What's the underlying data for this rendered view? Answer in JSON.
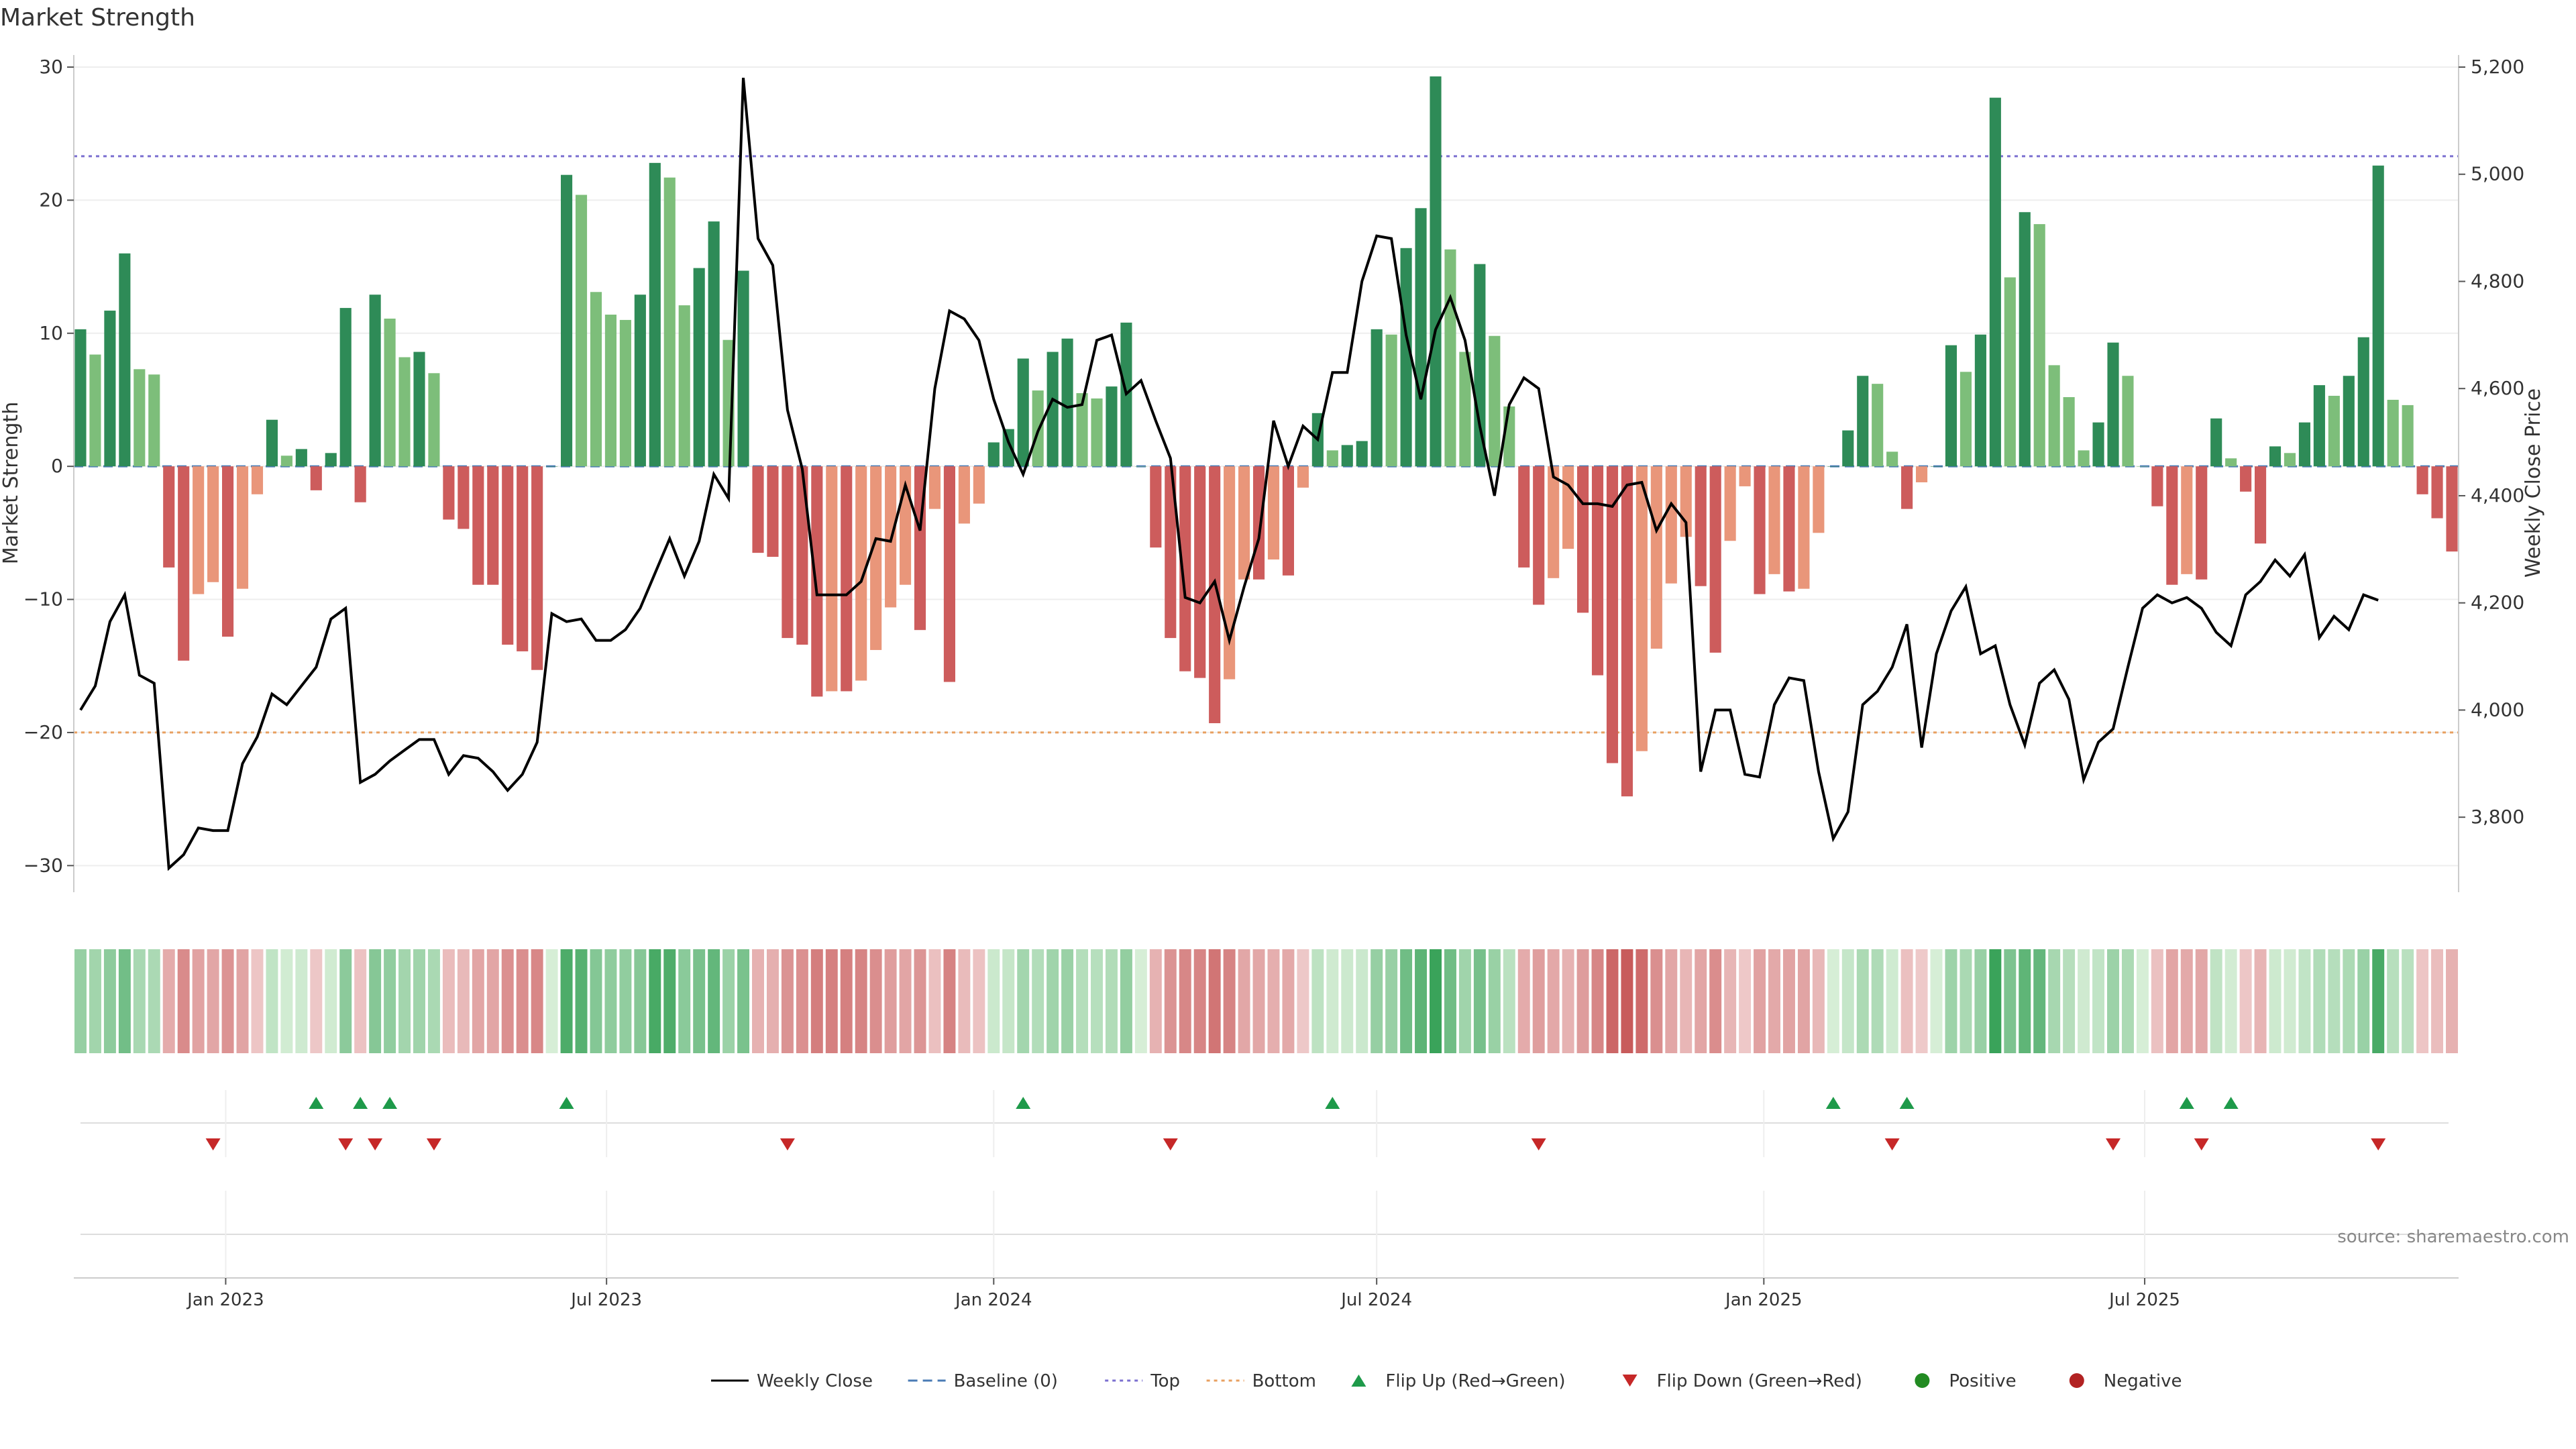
{
  "chart_data": {
    "type": "bar",
    "title": "Market Strength",
    "ylabel_left": "Market Strength",
    "ylabel_right": "Weekly Close Price",
    "source": "source: sharemaestro.com",
    "ylim_left": [
      -32,
      30
    ],
    "yticks_left": [
      "30",
      "20",
      "10",
      "0",
      "−10",
      "−20",
      "−30"
    ],
    "ylim_right": [
      3660,
      5200
    ],
    "yticks_right": [
      "5,200",
      "5,000",
      "4,800",
      "4,600",
      "4,400",
      "4,200",
      "4,000",
      "3,800"
    ],
    "x_start": "2022-10-24",
    "x_interval_days": 7,
    "xticks": [
      {
        "label": "Jan 2023",
        "date": "2023-01-01"
      },
      {
        "label": "Jul 2023",
        "date": "2023-07-01"
      },
      {
        "label": "Jan 2024",
        "date": "2024-01-01"
      },
      {
        "label": "Jul 2024",
        "date": "2024-07-01"
      },
      {
        "label": "Jan 2025",
        "date": "2025-01-01"
      },
      {
        "label": "Jul 2025",
        "date": "2025-07-01"
      }
    ],
    "reference_lines": {
      "baseline": 0,
      "top": 23.3,
      "bottom": -20
    },
    "strength": [
      10.3,
      8.4,
      11.7,
      16.0,
      7.3,
      6.9,
      -7.6,
      -14.6,
      -9.6,
      -8.7,
      -12.8,
      -9.2,
      -2.1,
      3.5,
      0.8,
      1.3,
      -1.8,
      1.0,
      11.9,
      -2.7,
      12.9,
      11.1,
      8.2,
      8.6,
      7.0,
      -4.0,
      -4.7,
      -8.9,
      -8.9,
      -13.4,
      -13.9,
      -15.3,
      0.0,
      21.9,
      20.4,
      13.1,
      11.4,
      11.0,
      12.9,
      22.8,
      21.7,
      12.1,
      14.9,
      18.4,
      9.5,
      14.7,
      -6.5,
      -6.8,
      -12.9,
      -13.4,
      -17.3,
      -16.9,
      -16.9,
      -16.1,
      -13.8,
      -10.6,
      -8.9,
      -12.3,
      -3.2,
      -16.2,
      -4.3,
      -2.8,
      1.8,
      2.8,
      8.1,
      5.7,
      8.6,
      9.6,
      5.5,
      5.1,
      6.0,
      10.8,
      0.0,
      -6.1,
      -12.9,
      -15.4,
      -15.9,
      -19.3,
      -16.0,
      -8.5,
      -8.5,
      -7.0,
      -8.2,
      -1.6,
      4.0,
      1.2,
      1.6,
      1.9,
      10.3,
      9.9,
      16.4,
      19.4,
      29.3,
      16.3,
      8.6,
      15.2,
      9.8,
      4.5,
      -7.6,
      -10.4,
      -8.4,
      -6.2,
      -11.0,
      -15.7,
      -22.3,
      -24.8,
      -21.4,
      -13.7,
      -8.8,
      -5.3,
      -9.0,
      -14.0,
      -5.6,
      -1.5,
      -9.6,
      -8.1,
      -9.4,
      -9.2,
      -5.0,
      0.0,
      2.7,
      6.8,
      6.2,
      1.1,
      -3.2,
      -1.2,
      0.0,
      9.1,
      7.1,
      9.9,
      27.7,
      14.2,
      19.1,
      18.2,
      7.6,
      5.2,
      1.2,
      3.3,
      9.3,
      6.8,
      0.0,
      -3.0,
      -8.9,
      -8.1,
      -8.5,
      3.6,
      0.6,
      -1.9,
      -5.8,
      1.5,
      1.0,
      3.3,
      6.1,
      5.3,
      6.8,
      9.7,
      22.6,
      5.0,
      4.6,
      -2.1,
      -3.9,
      -6.4
    ],
    "weekly_close": [
      4000,
      4045,
      4165,
      4215,
      4065,
      4050,
      3705,
      3730,
      3780,
      3775,
      3775,
      3900,
      3950,
      4030,
      4010,
      4045,
      4080,
      4170,
      4190,
      3865,
      3880,
      3905,
      3925,
      3945,
      3945,
      3880,
      3915,
      3910,
      3885,
      3850,
      3880,
      3940,
      4180,
      4165,
      4170,
      4130,
      4130,
      4150,
      4190,
      4255,
      4320,
      4250,
      4315,
      4440,
      4395,
      5180,
      4880,
      4830,
      4560,
      4450,
      4215,
      4215,
      4215,
      4240,
      4320,
      4315,
      4420,
      4335,
      4600,
      4745,
      4730,
      4690,
      4580,
      4500,
      4440,
      4520,
      4580,
      4565,
      4570,
      4690,
      4700,
      4590,
      4615,
      4540,
      4470,
      4210,
      4200,
      4240,
      4130,
      4230,
      4320,
      4540,
      4455,
      4530,
      4505,
      4630,
      4630,
      4800,
      4885,
      4880,
      4700,
      4580,
      4710,
      4770,
      4690,
      4530,
      4400,
      4570,
      4620,
      4600,
      4435,
      4420,
      4385,
      4385,
      4380,
      4420,
      4425,
      4335,
      4385,
      4350,
      3885,
      4000,
      4000,
      3880,
      3875,
      4010,
      4060,
      4055,
      3885,
      3760,
      3810,
      4010,
      4035,
      4080,
      4160,
      3930,
      4105,
      4185,
      4230,
      4105,
      4120,
      4010,
      3935,
      4050,
      4075,
      4020,
      3870,
      3940,
      3965,
      4080,
      4190,
      4215,
      4200,
      4210,
      4190,
      4145,
      4120,
      4215,
      4240,
      4280,
      4250,
      4290,
      4135,
      4175,
      4150,
      4215,
      4205
    ],
    "flip_up": [
      "2023-02-13",
      "2023-03-06",
      "2023-03-20",
      "2023-06-12",
      "2024-01-15",
      "2024-06-10",
      "2025-02-03",
      "2025-03-10",
      "2025-07-21",
      "2025-08-11"
    ],
    "flip_down": [
      "2022-12-26",
      "2023-02-27",
      "2023-03-13",
      "2023-04-10",
      "2023-09-25",
      "2024-03-25",
      "2024-09-16",
      "2025-03-03",
      "2025-06-16",
      "2025-07-28",
      "2025-10-20"
    ],
    "legend_placement": "bottom-center",
    "grid": true
  },
  "legend": [
    {
      "key": "close",
      "label": "Weekly Close"
    },
    {
      "key": "baseline",
      "label": "Baseline (0)"
    },
    {
      "key": "top",
      "label": "Top"
    },
    {
      "key": "bottom",
      "label": "Bottom"
    },
    {
      "key": "flipup",
      "label": "Flip Up (Red→Green)"
    },
    {
      "key": "flipdown",
      "label": "Flip Down (Green→Red)"
    },
    {
      "key": "positive",
      "label": "Positive"
    },
    {
      "key": "negative",
      "label": "Negative"
    }
  ],
  "colors": {
    "green_strong": "#2e8b57",
    "green_light": "#7dbe7a",
    "red_strong": "#cd5c5c",
    "red_light": "#e9967a",
    "close_line": "#000000",
    "baseline": "#4a7bb5",
    "top": "#7b6fd0",
    "bottom": "#e8a060",
    "flip_up": "#1e9a4a",
    "flip_down": "#c62828",
    "positive": "#228b22",
    "negative": "#b22222"
  }
}
